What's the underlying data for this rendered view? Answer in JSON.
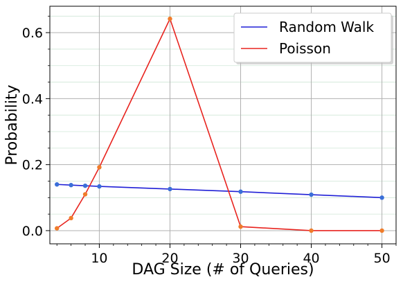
{
  "chart_data": {
    "type": "line",
    "title": "",
    "xlabel": "DAG Size (# of Queries)",
    "ylabel": "Probability",
    "xlim": [
      3,
      52
    ],
    "ylim": [
      -0.04,
      0.68
    ],
    "x_ticks": [
      10,
      20,
      30,
      40,
      50
    ],
    "y_ticks": [
      0.0,
      0.2,
      0.4,
      0.6
    ],
    "x_tick_labels": [
      "10",
      "20",
      "30",
      "40",
      "50"
    ],
    "y_tick_labels": [
      "0.0",
      "0.2",
      "0.4",
      "0.6"
    ],
    "grid": true,
    "legend_position": "top-right",
    "series": [
      {
        "name": "Random Walk",
        "color": "#1f1fd6",
        "marker_color": "#3a6fd8",
        "x": [
          4,
          6,
          8,
          10,
          20,
          30,
          40,
          50
        ],
        "values": [
          0.14,
          0.138,
          0.136,
          0.134,
          0.126,
          0.118,
          0.109,
          0.1
        ]
      },
      {
        "name": "Poisson",
        "color": "#e8231e",
        "marker_color": "#f07c2a",
        "x": [
          4,
          6,
          8,
          10,
          20,
          30,
          40,
          50
        ],
        "values": [
          0.007,
          0.038,
          0.11,
          0.192,
          0.642,
          0.012,
          0.0,
          0.0
        ]
      }
    ]
  }
}
